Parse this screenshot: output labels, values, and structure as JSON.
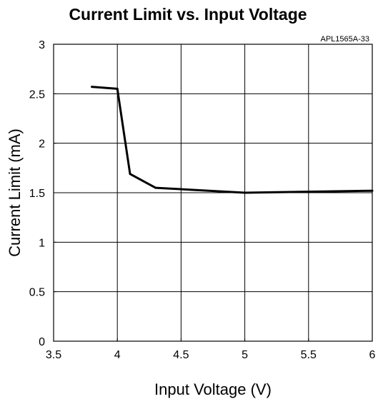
{
  "chart_data": {
    "type": "line",
    "title": "Current Limit vs. Input Voltage",
    "annotation": "APL1565A-33",
    "xlabel": "Input Voltage (V)",
    "ylabel": "Current Limit (mA)",
    "xlim": [
      3.5,
      6
    ],
    "ylim": [
      0,
      3
    ],
    "x_ticks": [
      "3.5",
      "4",
      "4.5",
      "5",
      "5.5",
      "6"
    ],
    "y_ticks": [
      "0",
      "0.5",
      "1",
      "1.5",
      "2",
      "2.5",
      "3"
    ],
    "grid": true,
    "series": [
      {
        "x": [
          3.8,
          4.0,
          4.1,
          4.3,
          5.0,
          6.0
        ],
        "y": [
          2.57,
          2.55,
          1.69,
          1.55,
          1.5,
          1.52
        ]
      }
    ]
  }
}
